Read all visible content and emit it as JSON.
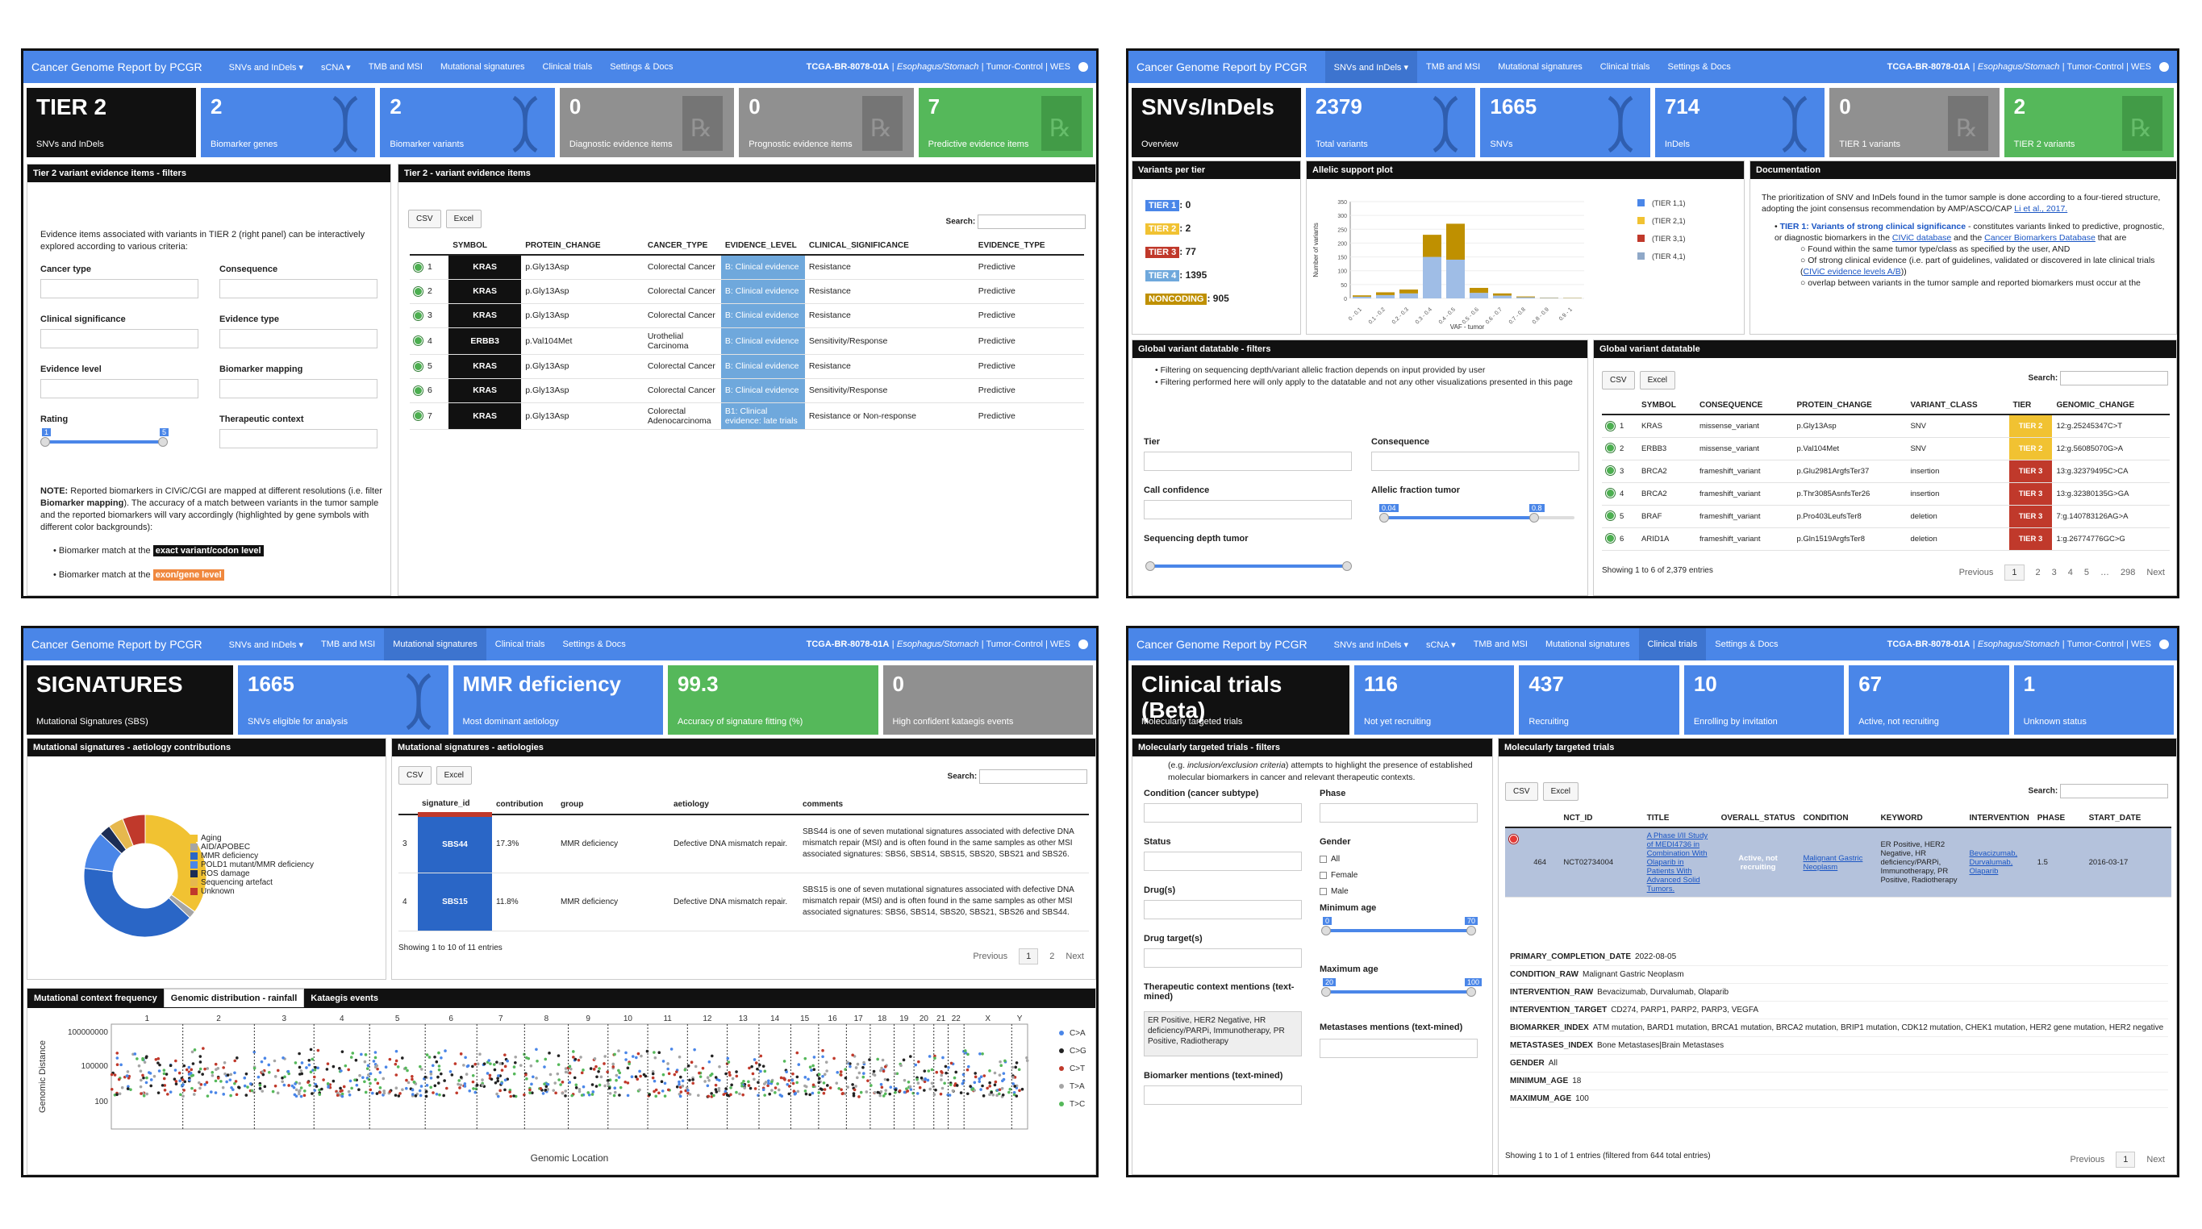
{
  "nav": {
    "brand": "Cancer Genome Report by PCGR",
    "sample_id": "TCGA-BR-8078-01A",
    "sample_meta": "Esophagus/Stomach",
    "sample_tail": "| Tumor-Control | WES"
  },
  "p1": {
    "menu": [
      "SNVs and InDels ▾",
      "sCNA ▾",
      "TMB and MSI",
      "Mutational signatures",
      "Clinical trials",
      "Settings & Docs"
    ],
    "cards": [
      {
        "v": "TIER 2",
        "l": "SNVs and InDels"
      },
      {
        "v": "2",
        "l": "Biomarker genes"
      },
      {
        "v": "2",
        "l": "Biomarker variants"
      },
      {
        "v": "0",
        "l": "Diagnostic evidence items"
      },
      {
        "v": "0",
        "l": "Prognostic evidence items"
      },
      {
        "v": "7",
        "l": "Predictive evidence items"
      }
    ],
    "filters_title": "Tier 2 variant evidence items - filters",
    "filters_intro": "Evidence items associated with variants in TIER 2 (right panel) can be interactively explored according to various criteria:",
    "labels": [
      "Cancer type",
      "Consequence",
      "Clinical significance",
      "Evidence type",
      "Evidence level",
      "Biomarker mapping",
      "Rating",
      "Therapeutic context"
    ],
    "rating_lo": "1",
    "rating_hi": "5",
    "note_bold": "NOTE:",
    "note_a": " Reported biomarkers in CIViC/CGI are mapped at different resolutions (i.e. filter ",
    "note_b": "Biomarker mapping",
    "note_c": "). The accuracy of a match between variants in the tumor sample and the reported biomarkers will vary accordingly (highlighted by gene symbols with different color backgrounds):",
    "b1_pre": "Biomarker match at the",
    "b1_tag": "exact variant/codon level",
    "b2_pre": "Biomarker match at the",
    "b2_tag": "exon/gene level",
    "table_title": "Tier 2 - variant evidence items",
    "csv": "CSV",
    "excel": "Excel",
    "search": "Search:",
    "cols": [
      "SYMBOL",
      "PROTEIN_CHANGE",
      "CANCER_TYPE",
      "EVIDENCE_LEVEL",
      "CLINICAL_SIGNIFICANCE",
      "EVIDENCE_TYPE"
    ],
    "rows": [
      [
        "1",
        "KRAS",
        "p.Gly13Asp",
        "Colorectal Cancer",
        "B: Clinical evidence",
        "Resistance",
        "Predictive"
      ],
      [
        "2",
        "KRAS",
        "p.Gly13Asp",
        "Colorectal Cancer",
        "B: Clinical evidence",
        "Resistance",
        "Predictive"
      ],
      [
        "3",
        "KRAS",
        "p.Gly13Asp",
        "Colorectal Cancer",
        "B: Clinical evidence",
        "Resistance",
        "Predictive"
      ],
      [
        "4",
        "ERBB3",
        "p.Val104Met",
        "Urothelial Carcinoma",
        "B: Clinical evidence",
        "Sensitivity/Response",
        "Predictive"
      ],
      [
        "5",
        "KRAS",
        "p.Gly13Asp",
        "Colorectal Cancer",
        "B: Clinical evidence",
        "Resistance",
        "Predictive"
      ],
      [
        "6",
        "KRAS",
        "p.Gly13Asp",
        "Colorectal Cancer",
        "B: Clinical evidence",
        "Sensitivity/Response",
        "Predictive"
      ],
      [
        "7",
        "KRAS",
        "p.Gly13Asp",
        "Colorectal Adenocarcinoma",
        "B1: Clinical evidence: late trials",
        "Resistance or Non-response",
        "Predictive"
      ]
    ]
  },
  "p2": {
    "menu": [
      "SNVs and InDels ▾",
      "TMB and MSI",
      "Mutational signatures",
      "Clinical trials",
      "Settings & Docs"
    ],
    "cards": [
      {
        "v": "SNVs/InDels",
        "l": "Overview"
      },
      {
        "v": "2379",
        "l": "Total variants"
      },
      {
        "v": "1665",
        "l": "SNVs"
      },
      {
        "v": "714",
        "l": "InDels"
      },
      {
        "v": "0",
        "l": "TIER 1 variants"
      },
      {
        "v": "2",
        "l": "TIER 2 variants"
      }
    ],
    "vpt_title": "Variants per tier",
    "tiers": [
      {
        "t": "TIER 1",
        "n": ": 0",
        "c": "#4a86e8"
      },
      {
        "t": "TIER 2",
        "n": ": 2",
        "c": "#f1c232"
      },
      {
        "t": "TIER 3",
        "n": ": 77",
        "c": "#c0392b"
      },
      {
        "t": "TIER 4",
        "n": ": 1395",
        "c": "#6fa8dc"
      },
      {
        "t": "NONCODING",
        "n": ": 905",
        "c": "#bf9000"
      }
    ],
    "aplot_title": "Allelic support plot",
    "doc_title": "Documentation",
    "doc_p": "The prioritization of SNV and InDels found in the tumor sample is done according to a four-tiered structure, adopting the joint consensus recommendation by AMP/ASCO/CAP",
    "doc_link": "Li et al., 2017.",
    "doc_tier1": "TIER 1: Variants of strong clinical significance",
    "doc_tier1b": " - constitutes variants linked to predictive, prognostic, or diagnostic biomarkers in the ",
    "doc_civic": "CIViC database",
    "doc_and": " and the ",
    "doc_cbd": "Cancer Biomarkers Database",
    "doc_that": " that are",
    "doc_s1": "Found within the same tumor type/class as specified by the user, AND",
    "doc_s2a": "Of strong clinical evidence (i.e. part of guidelines, validated or discovered in late clinical trials (",
    "doc_s2link": "CIViC evidence levels A/B",
    "doc_s2b": "))",
    "doc_s3": "overlap between variants in the tumor sample and reported biomarkers must occur at the",
    "gfilt_title": "Global variant datatable - filters",
    "gf1": "Filtering on sequencing depth/variant allelic fraction depends on input provided by user",
    "gf2": "Filtering performed here will only apply to the datatable and not any other visualizations presented in this page",
    "glabels": [
      "Tier",
      "Consequence",
      "Call confidence",
      "Allelic fraction tumor",
      "Sequencing depth tumor"
    ],
    "af_lo": "0.04",
    "af_hi": "0.8",
    "gdt_title": "Global variant datatable",
    "csv": "CSV",
    "excel": "Excel",
    "search": "Search:",
    "cols": [
      "SYMBOL",
      "CONSEQUENCE",
      "PROTEIN_CHANGE",
      "VARIANT_CLASS",
      "TIER",
      "GENOMIC_CHANGE"
    ],
    "rows": [
      [
        "1",
        "KRAS",
        "missense_variant",
        "p.Gly13Asp",
        "SNV",
        "TIER 2",
        "12:g.25245347C>T"
      ],
      [
        "2",
        "ERBB3",
        "missense_variant",
        "p.Val104Met",
        "SNV",
        "TIER 2",
        "12:g.56085070G>A"
      ],
      [
        "3",
        "BRCA2",
        "frameshift_variant",
        "p.Glu2981ArgfsTer37",
        "insertion",
        "TIER 3",
        "13:g.32379495C>CA"
      ],
      [
        "4",
        "BRCA2",
        "frameshift_variant",
        "p.Thr3085AsnfsTer26",
        "insertion",
        "TIER 3",
        "13:g.32380135G>GA"
      ],
      [
        "5",
        "BRAF",
        "frameshift_variant",
        "p.Pro403LeufsTer8",
        "deletion",
        "TIER 3",
        "7:g.140783126AG>A"
      ],
      [
        "6",
        "ARID1A",
        "frameshift_variant",
        "p.Gln1519ArgfsTer8",
        "deletion",
        "TIER 3",
        "1:g.26774776GC>G"
      ]
    ],
    "showing": "Showing 1 to 6 of 2,379 entries",
    "pager": [
      "Previous",
      "1",
      "2",
      "3",
      "4",
      "5",
      "…",
      "298",
      "Next"
    ]
  },
  "chart_data": {
    "type": "bar",
    "xlabel": "VAF - tumor",
    "ylabel": "Number of variants",
    "categories": [
      "0 - 0.1",
      "0.1 - 0.2",
      "0.2 - 0.3",
      "0.3 - 0.4",
      "0.4 - 0.5",
      "0.5 - 0.6",
      "0.6 - 0.7",
      "0.7 - 0.8",
      "0.8 - 0.9",
      "0.9 - 1"
    ],
    "yticks": [
      "0",
      "50",
      "100",
      "150",
      "200",
      "250",
      "300",
      "350"
    ],
    "ylim": [
      0,
      350
    ],
    "legend": [
      "(TIER 1,1)",
      "(TIER 2,1)",
      "(TIER 3,1)",
      "(TIER 4,1)"
    ],
    "legend_colors": [
      "#4a86e8",
      "#f1c232",
      "#c0392b",
      "#8fa8c8"
    ],
    "stack_colors": [
      "#9fbde6",
      "#bf9000"
    ],
    "bars": [
      [
        6,
        5
      ],
      [
        12,
        10
      ],
      [
        18,
        14
      ],
      [
        150,
        80
      ],
      [
        140,
        130
      ],
      [
        20,
        18
      ],
      [
        10,
        8
      ],
      [
        4,
        3
      ],
      [
        2,
        1
      ],
      [
        1,
        1
      ]
    ]
  },
  "p3": {
    "menu": [
      "SNVs and InDels ▾",
      "TMB and MSI",
      "Mutational signatures",
      "Clinical trials",
      "Settings & Docs"
    ],
    "cards": [
      {
        "v": "SIGNATURES",
        "l": "Mutational Signatures (SBS)"
      },
      {
        "v": "1665",
        "l": "SNVs eligible for analysis"
      },
      {
        "v": "MMR deficiency",
        "l": "Most dominant aetiology"
      },
      {
        "v": "99.3",
        "l": "Accuracy of signature fitting (%)"
      },
      {
        "v": "0",
        "l": "High confident kataegis events"
      }
    ],
    "donut_title": "Mutational signatures - aetiology contributions",
    "donut_legend": [
      {
        "n": "Aging",
        "c": "#f1c232"
      },
      {
        "n": "AID/APOBEC",
        "c": "#a5a5a5"
      },
      {
        "n": "MMR deficiency",
        "c": "#2a66c6"
      },
      {
        "n": "POLD1 mutant/MMR deficiency",
        "c": "#4a86e8"
      },
      {
        "n": "ROS damage",
        "c": "#1c2d55"
      },
      {
        "n": "Sequencing artefact",
        "c": "#e6b84e"
      },
      {
        "n": "Unknown",
        "c": "#c0392b"
      }
    ],
    "donut_values": [
      35,
      2,
      40,
      10,
      3,
      4,
      6
    ],
    "aet_title": "Mutational signatures - aetiologies",
    "csv": "CSV",
    "excel": "Excel",
    "search": "Search:",
    "cols": [
      "signature_id",
      "contribution",
      "group",
      "aetiology",
      "comments"
    ],
    "rows": [
      [
        "3",
        "SBS44",
        "17.3%",
        "MMR deficiency",
        "Defective DNA mismatch repair.",
        "SBS44 is one of seven mutational signatures associated with defective DNA mismatch repair (MSI) and is often found in the same samples as other MSI associated signatures: SBS6, SBS14, SBS15, SBS20, SBS21 and SBS26."
      ],
      [
        "4",
        "SBS15",
        "11.8%",
        "MMR deficiency",
        "Defective DNA mismatch repair.",
        "SBS15 is one of seven mutational signatures associated with defective DNA mismatch repair (MSI) and is often found in the same samples as other MSI associated signatures: SBS6, SBS14, SBS20, SBS21, SBS26 and SBS44."
      ]
    ],
    "showing": "Showing 1 to 10 of 11 entries",
    "pager": [
      "Previous",
      "1",
      "2",
      "Next"
    ],
    "tabs": [
      "Mutational context frequency",
      "Genomic distribution - rainfall",
      "Kataegis events"
    ],
    "rain_xlabel": "Genomic Location",
    "rain_ylabel": "Genomic Distance",
    "rain_yticks": [
      "100000000",
      "100000",
      "100"
    ],
    "chroms": [
      "1",
      "2",
      "3",
      "4",
      "5",
      "6",
      "7",
      "8",
      "9",
      "10",
      "11",
      "12",
      "13",
      "14",
      "15",
      "16",
      "17",
      "18",
      "19",
      "20",
      "21",
      "22",
      "X",
      "Y"
    ],
    "rain_legend": [
      {
        "n": "C>A",
        "c": "#4a86e8"
      },
      {
        "n": "C>G",
        "c": "#222"
      },
      {
        "n": "C>T",
        "c": "#c0392b"
      },
      {
        "n": "T>A",
        "c": "#a5a5a5"
      },
      {
        "n": "T>C",
        "c": "#55b85a"
      }
    ]
  },
  "p4": {
    "menu": [
      "SNVs and InDels ▾",
      "sCNA ▾",
      "TMB and MSI",
      "Mutational signatures",
      "Clinical trials",
      "Settings & Docs"
    ],
    "cards": [
      {
        "v": "Clinical trials (Beta)",
        "l": "Molecularly targeted trials"
      },
      {
        "v": "116",
        "l": "Not yet recruiting"
      },
      {
        "v": "437",
        "l": "Recruiting"
      },
      {
        "v": "10",
        "l": "Enrolling by invitation"
      },
      {
        "v": "67",
        "l": "Active, not recruiting"
      },
      {
        "v": "1",
        "l": "Unknown status"
      }
    ],
    "filt_title": "Molecularly targeted trials - filters",
    "filt_intro_a": "(e.g. ",
    "filt_intro_i": "inclusion/exclusion criteria",
    "filt_intro_b": ") attempts to highlight the presence of established molecular biomarkers in cancer and relevant therapeutic contexts.",
    "labels_left": [
      "Condition (cancer subtype)",
      "Status",
      "Drug(s)",
      "Drug target(s)",
      "Therapeutic context mentions (text-mined)",
      "Biomarker mentions (text-mined)"
    ],
    "labels_right": [
      "Phase",
      "Gender",
      "Minimum age",
      "Maximum age",
      "Metastases mentions (text-mined)"
    ],
    "gender_opts": [
      "All",
      "Female",
      "Male"
    ],
    "ctx_text": "ER Positive, HER2 Negative, HR deficiency/PARPi, Immunotherapy, PR Positive, Radiotherapy",
    "min_age_lo": "0",
    "min_age_hi": "70",
    "max_age_lo": "20",
    "max_age_hi": "100",
    "trials_title": "Molecularly targeted trials",
    "csv": "CSV",
    "excel": "Excel",
    "search": "Search:",
    "cols": [
      "NCT_ID",
      "TITLE",
      "OVERALL_STATUS",
      "CONDITION",
      "KEYWORD",
      "INTERVENTION",
      "PHASE",
      "START_DATE"
    ],
    "row": {
      "idx": "464",
      "nct": "NCT02734004",
      "title": "A Phase I/II Study of MEDI4736 in Combination With Olaparib in Patients With Advanced Solid Tumors.",
      "status": "Active, not recruiting",
      "condition": "Malignant Gastric Neoplasm",
      "keyword": "ER Positive, HER2 Negative, HR deficiency/PARPi, Immunotherapy, PR Positive, Radiotherapy",
      "intervention": "Bevacizumab, Durvalumab, Olaparib",
      "phase": "1.5",
      "start": "2016-03-17"
    },
    "details": [
      {
        "k": "PRIMARY_COMPLETION_DATE",
        "v": "2022-08-05"
      },
      {
        "k": "CONDITION_RAW",
        "v": "Malignant Gastric Neoplasm"
      },
      {
        "k": "INTERVENTION_RAW",
        "v": "Bevacizumab, Durvalumab, Olaparib"
      },
      {
        "k": "INTERVENTION_TARGET",
        "v": "CD274, PARP1, PARP2, PARP3, VEGFA"
      },
      {
        "k": "BIOMARKER_INDEX",
        "v": "ATM mutation, BARD1 mutation, BRCA1 mutation, BRCA2 mutation, BRIP1 mutation, CDK12 mutation, CHEK1 mutation, HER2 gene mutation, HER2 negative"
      },
      {
        "k": "METASTASES_INDEX",
        "v": "Bone Metastases|Brain Metastases"
      },
      {
        "k": "GENDER",
        "v": "All"
      },
      {
        "k": "MINIMUM_AGE",
        "v": "18"
      },
      {
        "k": "MAXIMUM_AGE",
        "v": "100"
      }
    ],
    "showing": "Showing 1 to 1 of 1 entries (filtered from 644 total entries)",
    "pager": [
      "Previous",
      "1",
      "Next"
    ]
  }
}
